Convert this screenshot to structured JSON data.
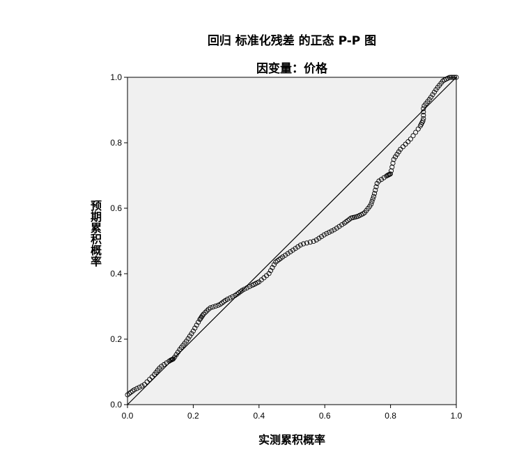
{
  "chart_data": {
    "type": "scatter",
    "title": "回归 标准化残差 的正态 P-P 图",
    "subtitle": "因变量：价格",
    "xlabel": "实测累积概率",
    "ylabel": "预期累积概率",
    "xlim": [
      0.0,
      1.0
    ],
    "ylim": [
      0.0,
      1.0
    ],
    "xticks": [
      "0.0",
      "0.2",
      "0.4",
      "0.6",
      "0.8",
      "1.0"
    ],
    "yticks": [
      "0.0",
      "0.2",
      "0.4",
      "0.6",
      "0.8",
      "1.0"
    ],
    "grid": false,
    "plot_background": "#f0f0f0",
    "marker_color": "#000000",
    "reference_line": {
      "from": [
        0.0,
        0.0
      ],
      "to": [
        1.0,
        1.0
      ]
    },
    "points_outline": [
      [
        0.0,
        0.03
      ],
      [
        0.02,
        0.045
      ],
      [
        0.05,
        0.06
      ],
      [
        0.08,
        0.09
      ],
      [
        0.1,
        0.115
      ],
      [
        0.13,
        0.135
      ],
      [
        0.14,
        0.14
      ],
      [
        0.16,
        0.17
      ],
      [
        0.18,
        0.195
      ],
      [
        0.2,
        0.225
      ],
      [
        0.22,
        0.26
      ],
      [
        0.23,
        0.275
      ],
      [
        0.25,
        0.295
      ],
      [
        0.28,
        0.305
      ],
      [
        0.3,
        0.32
      ],
      [
        0.33,
        0.335
      ],
      [
        0.35,
        0.35
      ],
      [
        0.38,
        0.365
      ],
      [
        0.4,
        0.375
      ],
      [
        0.43,
        0.4
      ],
      [
        0.45,
        0.435
      ],
      [
        0.47,
        0.45
      ],
      [
        0.5,
        0.47
      ],
      [
        0.53,
        0.49
      ],
      [
        0.57,
        0.5
      ],
      [
        0.6,
        0.52
      ],
      [
        0.63,
        0.535
      ],
      [
        0.66,
        0.555
      ],
      [
        0.68,
        0.57
      ],
      [
        0.7,
        0.575
      ],
      [
        0.72,
        0.585
      ],
      [
        0.74,
        0.61
      ],
      [
        0.75,
        0.64
      ],
      [
        0.76,
        0.68
      ],
      [
        0.79,
        0.7
      ],
      [
        0.8,
        0.705
      ],
      [
        0.81,
        0.75
      ],
      [
        0.83,
        0.78
      ],
      [
        0.86,
        0.81
      ],
      [
        0.89,
        0.85
      ],
      [
        0.9,
        0.87
      ],
      [
        0.9,
        0.91
      ],
      [
        0.92,
        0.935
      ],
      [
        0.94,
        0.965
      ],
      [
        0.96,
        0.99
      ],
      [
        0.98,
        1.0
      ],
      [
        1.0,
        1.0
      ]
    ]
  }
}
